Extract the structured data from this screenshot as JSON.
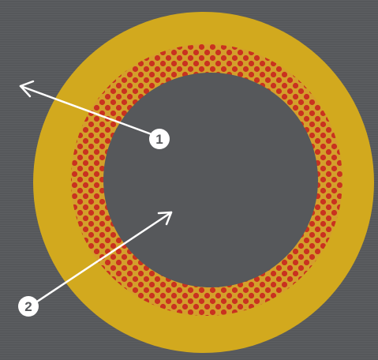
{
  "diagram": {
    "colors": {
      "background": "#56585b",
      "outer_ring": "#d2a91e",
      "patterned_ring_base": "#d49f2b",
      "pattern_dots": "#c9321f",
      "center": "#56585b",
      "callout_lines": "#ffffff",
      "callout_badge": "#ffffff"
    },
    "callouts": [
      {
        "number": "1"
      },
      {
        "number": "2"
      }
    ]
  }
}
